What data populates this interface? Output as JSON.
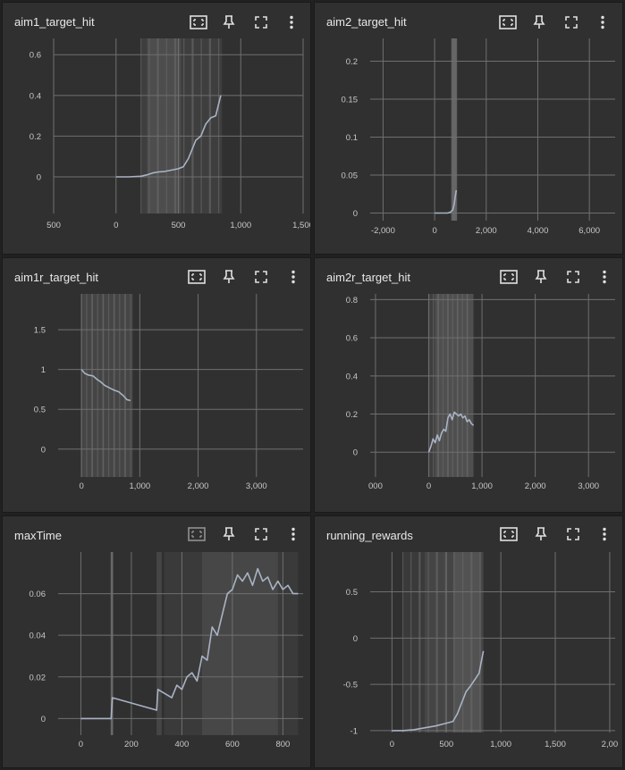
{
  "colors": {
    "card_bg": "#303030",
    "grid": "#6f6f6f",
    "line": "#a9b3c4",
    "band": "#585858",
    "text": "#e8e8e8"
  },
  "cards": [
    {
      "title": "aim1_target_hit"
    },
    {
      "title": "aim2_target_hit"
    },
    {
      "title": "aim1r_target_hit"
    },
    {
      "title": "aim2r_target_hit"
    },
    {
      "title": "maxTime"
    },
    {
      "title": "running_rewards"
    }
  ],
  "toolbar_icons": [
    "fit-domain-icon",
    "pin-icon",
    "fullscreen-icon",
    "more-vert-icon"
  ],
  "chart_data": [
    {
      "type": "line",
      "title": "aim1_target_hit",
      "x_ticks": [
        "500",
        "0",
        "500",
        "1,000",
        "1,500"
      ],
      "y_ticks": [
        "0.6",
        "0.4",
        "0.2",
        "0"
      ],
      "xlim": [
        -500,
        1500
      ],
      "ylim": [
        -0.18,
        0.68
      ],
      "series": [
        {
          "x": [
            0,
            100,
            200,
            250,
            300,
            340,
            380,
            420,
            460,
            500,
            540,
            580,
            600,
            640,
            680,
            720,
            760,
            800,
            840
          ],
          "y": [
            0,
            0,
            0.003,
            0.01,
            0.02,
            0.024,
            0.026,
            0.03,
            0.035,
            0.04,
            0.05,
            0.09,
            0.12,
            0.18,
            0.2,
            0.26,
            0.29,
            0.3,
            0.4
          ]
        }
      ]
    },
    {
      "type": "line",
      "title": "aim2_target_hit",
      "x_ticks": [
        "-2,000",
        "0",
        "2,000",
        "4,000",
        "6,000"
      ],
      "y_ticks": [
        "0.2",
        "0.15",
        "0.1",
        "0.05",
        "0"
      ],
      "xlim": [
        -2500,
        7000
      ],
      "ylim": [
        -0.01,
        0.23
      ],
      "series": [
        {
          "x": [
            0,
            200,
            400,
            500,
            600,
            700,
            760,
            800,
            840
          ],
          "y": [
            0,
            0,
            0,
            0,
            0.001,
            0.004,
            0.012,
            0.022,
            0.03
          ]
        }
      ]
    },
    {
      "type": "line",
      "title": "aim1r_target_hit",
      "x_ticks": [
        "0",
        "1,000",
        "2,000",
        "3,000"
      ],
      "y_ticks": [
        "1.5",
        "1",
        "0.5",
        "0"
      ],
      "xlim": [
        -400,
        3800
      ],
      "ylim": [
        -0.35,
        1.95
      ],
      "series": [
        {
          "x": [
            0,
            60,
            120,
            200,
            260,
            320,
            400,
            480,
            560,
            640,
            720,
            780,
            840
          ],
          "y": [
            1.0,
            0.95,
            0.93,
            0.92,
            0.88,
            0.85,
            0.8,
            0.77,
            0.74,
            0.72,
            0.67,
            0.62,
            0.61
          ]
        }
      ]
    },
    {
      "type": "line",
      "title": "aim2r_target_hit",
      "x_ticks": [
        "000",
        "0",
        "1,000",
        "2,000",
        "3,000"
      ],
      "y_ticks": [
        "0.8",
        "0.6",
        "0.4",
        "0.2",
        "0"
      ],
      "xlim": [
        -1100,
        3500
      ],
      "ylim": [
        -0.13,
        0.83
      ],
      "series": [
        {
          "x": [
            0,
            40,
            80,
            120,
            160,
            200,
            240,
            280,
            320,
            360,
            400,
            440,
            480,
            520,
            560,
            600,
            640,
            680,
            720,
            760,
            800,
            840
          ],
          "y": [
            0.0,
            0.03,
            0.07,
            0.05,
            0.09,
            0.06,
            0.1,
            0.12,
            0.11,
            0.18,
            0.2,
            0.17,
            0.21,
            0.2,
            0.19,
            0.2,
            0.18,
            0.19,
            0.16,
            0.17,
            0.15,
            0.14
          ]
        }
      ]
    },
    {
      "type": "line",
      "title": "maxTime",
      "x_ticks": [
        "0",
        "200",
        "400",
        "600",
        "800"
      ],
      "y_ticks": [
        "0.06",
        "0.04",
        "0.02",
        "0"
      ],
      "xlim": [
        -90,
        880
      ],
      "ylim": [
        -0.008,
        0.08
      ],
      "series": [
        {
          "x": [
            0,
            120,
            125,
            300,
            305,
            360,
            380,
            400,
            420,
            440,
            460,
            480,
            500,
            520,
            540,
            560,
            580,
            600,
            620,
            640,
            660,
            680,
            700,
            720,
            740,
            760,
            780,
            800,
            820,
            840,
            860
          ],
          "y": [
            0,
            0,
            0.01,
            0.004,
            0.014,
            0.01,
            0.016,
            0.014,
            0.02,
            0.022,
            0.018,
            0.03,
            0.028,
            0.044,
            0.04,
            0.05,
            0.06,
            0.062,
            0.069,
            0.066,
            0.07,
            0.064,
            0.072,
            0.066,
            0.068,
            0.062,
            0.066,
            0.062,
            0.064,
            0.06,
            0.06
          ]
        }
      ]
    },
    {
      "type": "line",
      "title": "running_rewards",
      "x_ticks": [
        "0",
        "500",
        "1,000",
        "1,500",
        "2,00"
      ],
      "y_ticks": [
        "0.5",
        "0",
        "-0.5",
        "-1"
      ],
      "xlim": [
        -200,
        2050
      ],
      "ylim": [
        -1.02,
        0.93
      ],
      "series": [
        {
          "x": [
            0,
            100,
            200,
            300,
            400,
            500,
            560,
            600,
            640,
            680,
            720,
            760,
            800,
            840
          ],
          "y": [
            -1,
            -1,
            -0.99,
            -0.97,
            -0.95,
            -0.92,
            -0.9,
            -0.82,
            -0.7,
            -0.58,
            -0.52,
            -0.45,
            -0.38,
            -0.14
          ]
        }
      ]
    }
  ]
}
